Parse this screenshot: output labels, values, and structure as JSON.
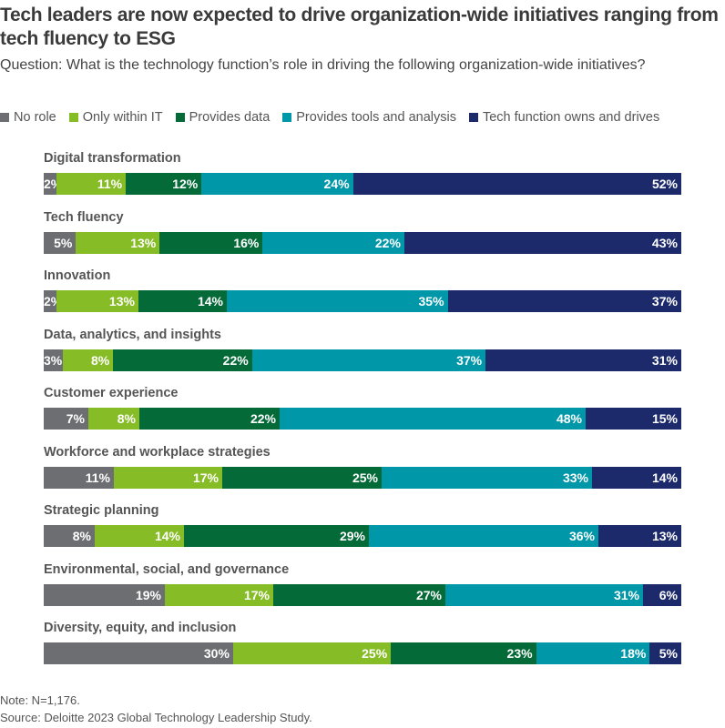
{
  "title": "Tech leaders are now expected to drive organization-wide initiatives ranging from tech fluency to ESG",
  "subtitle": "Question: What is the technology function’s role in driving the following organization-wide initiatives?",
  "note": "Note: N=1,176.",
  "source": "Source: Deloitte 2023 Global Technology Leadership Study.",
  "chart_data": {
    "type": "bar",
    "orientation": "horizontal-stacked-100",
    "legend_placement": "top",
    "categories": [
      "Digital transformation",
      "Tech fluency",
      "Innovation",
      "Data, analytics, and insights",
      "Customer experience",
      "Workforce and workplace strategies",
      "Strategic planning",
      "Environmental, social, and governance",
      "Diversity, equity, and inclusion"
    ],
    "series": [
      {
        "name": "No role",
        "color": "#6d6e71",
        "values": [
          2,
          5,
          2,
          3,
          7,
          11,
          8,
          19,
          30
        ]
      },
      {
        "name": "Only within IT",
        "color": "#86bc25",
        "values": [
          11,
          13,
          13,
          8,
          8,
          17,
          14,
          17,
          25
        ]
      },
      {
        "name": "Provides data",
        "color": "#046a38",
        "values": [
          12,
          16,
          14,
          22,
          22,
          25,
          29,
          27,
          23
        ]
      },
      {
        "name": "Provides tools and analysis",
        "color": "#0097a9",
        "values": [
          24,
          22,
          35,
          37,
          48,
          33,
          36,
          31,
          18
        ]
      },
      {
        "name": "Tech function owns and drives",
        "color": "#1c2a6b",
        "values": [
          52,
          43,
          37,
          31,
          15,
          14,
          13,
          6,
          5
        ]
      }
    ]
  }
}
